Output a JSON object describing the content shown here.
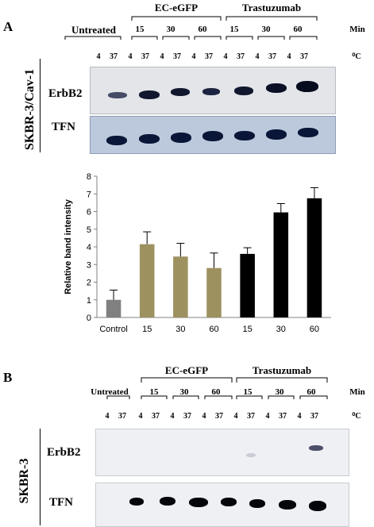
{
  "panel_a": {
    "letter": "A",
    "groups": {
      "untreated": "Untreated",
      "ec": "EC-eGFP",
      "trast": "Trastuzumab"
    },
    "time_labels": [
      "15",
      "30",
      "60",
      "15",
      "30",
      "60"
    ],
    "time_unit": "Min",
    "temps": [
      "4",
      "37",
      "4",
      "37",
      "4",
      "37",
      "4",
      "37",
      "4",
      "37",
      "4",
      "37",
      "4",
      "37"
    ],
    "temp_unit": "⁰C",
    "cell_line": "SKBR-3/Cav-1",
    "blot_rows": [
      "ErbB2",
      "TFN"
    ]
  },
  "panel_b": {
    "letter": "B",
    "groups": {
      "untreated": "Untreated",
      "ec": "EC-eGFP",
      "trast": "Trastuzumab"
    },
    "time_labels": [
      "15",
      "30",
      "60",
      "15",
      "30",
      "60"
    ],
    "time_unit": "Min",
    "temps": [
      "4",
      "37",
      "4",
      "37",
      "4",
      "37",
      "4",
      "37",
      "4",
      "37",
      "4",
      "37",
      "4",
      "37"
    ],
    "temp_unit": "⁰C",
    "cell_line": "SKBR-3",
    "blot_rows": [
      "ErbB2",
      "TFN"
    ]
  },
  "chart_data": {
    "type": "bar",
    "categories": [
      "Control",
      "15",
      "30",
      "60",
      "15",
      "30",
      "60"
    ],
    "values": [
      1.0,
      4.15,
      3.45,
      2.8,
      3.6,
      5.95,
      6.75
    ],
    "errors": [
      0.55,
      0.7,
      0.75,
      0.85,
      0.35,
      0.5,
      0.6
    ],
    "bar_colors": [
      "#808080",
      "#9e9160",
      "#9e9160",
      "#9e9160",
      "#000000",
      "#000000",
      "#000000"
    ],
    "ylabel": "Relative band  intensity",
    "xlabel": "",
    "ylim": [
      0,
      8
    ],
    "yticks": [
      0,
      1,
      2,
      3,
      4,
      5,
      6,
      7,
      8
    ],
    "grid": false
  }
}
